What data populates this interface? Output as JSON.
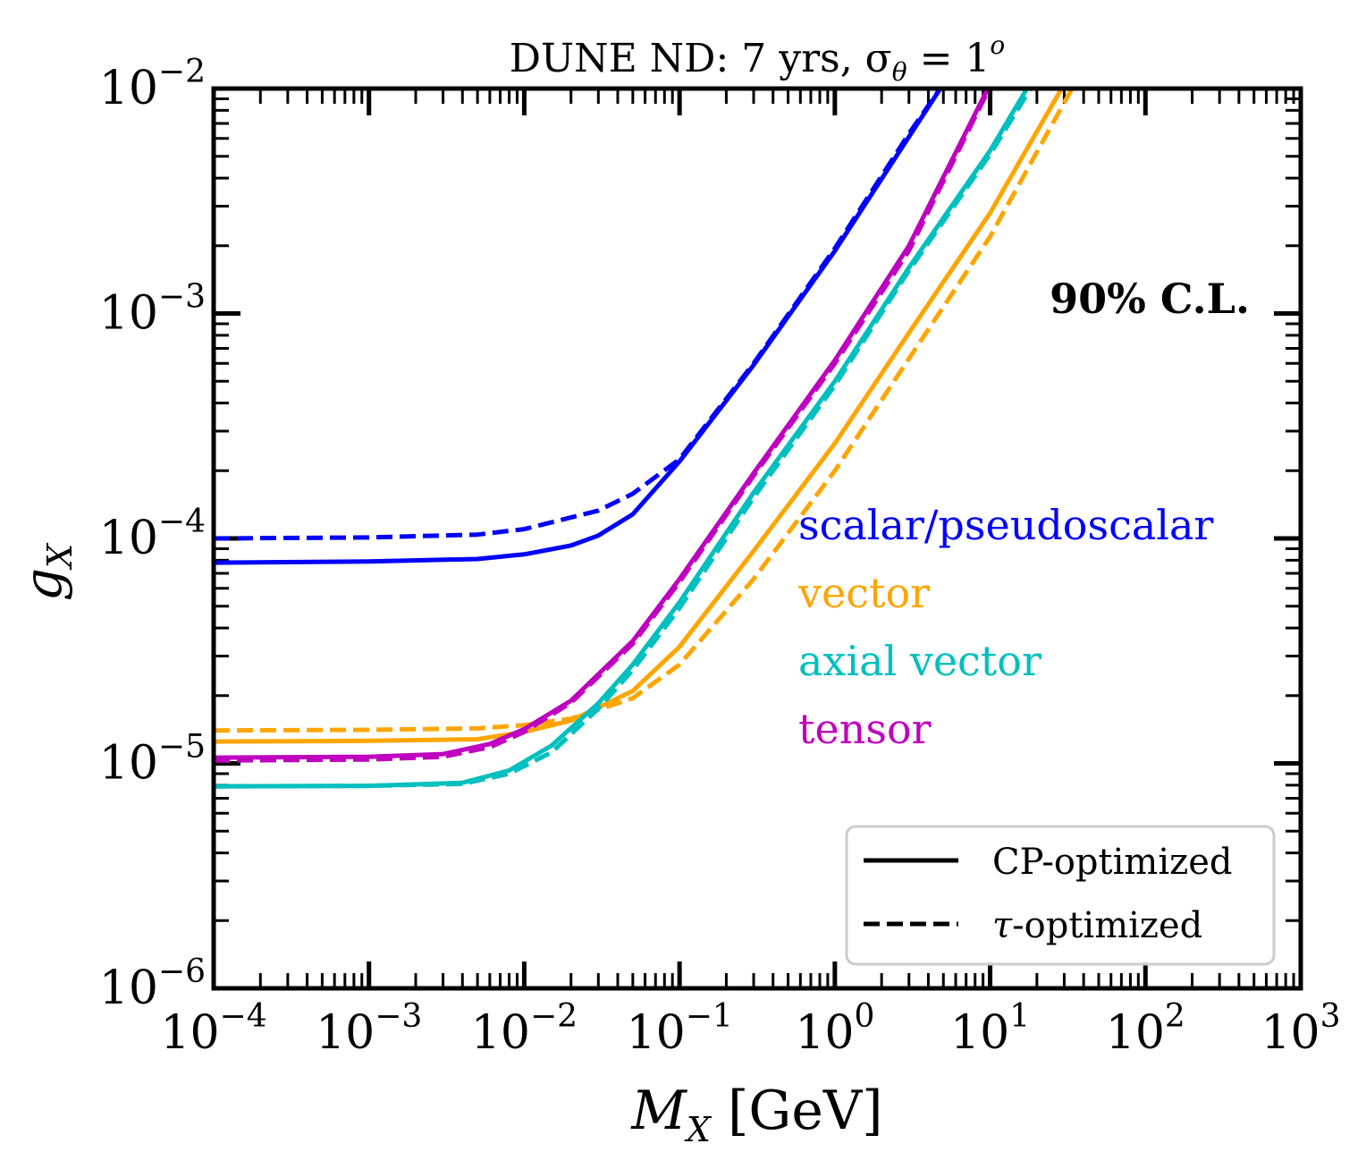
{
  "chart_data": {
    "type": "line",
    "title": "DUNE ND: 7 yrs, σ_θ = 1^o",
    "title_parts": {
      "main": "DUNE ND: 7 yrs, σ",
      "sub": "θ",
      "eq": " = 1",
      "sup": "o"
    },
    "xlabel": "M_X [GeV]",
    "xlabel_parts": {
      "main": "M",
      "sub": "X",
      "unit": " [GeV]"
    },
    "ylabel": "g_X",
    "ylabel_parts": {
      "main": "g",
      "sub": "X"
    },
    "xscale": "log",
    "yscale": "log",
    "xlim": [
      0.0001,
      1000
    ],
    "ylim": [
      1e-06,
      0.01
    ],
    "x_ticks": [
      {
        "base": "10",
        "exp": "−4"
      },
      {
        "base": "10",
        "exp": "−3"
      },
      {
        "base": "10",
        "exp": "−2"
      },
      {
        "base": "10",
        "exp": "−1"
      },
      {
        "base": "10",
        "exp": "0"
      },
      {
        "base": "10",
        "exp": "1"
      },
      {
        "base": "10",
        "exp": "2"
      },
      {
        "base": "10",
        "exp": "3"
      }
    ],
    "y_ticks": [
      {
        "base": "10",
        "exp": "−6"
      },
      {
        "base": "10",
        "exp": "−5"
      },
      {
        "base": "10",
        "exp": "−4"
      },
      {
        "base": "10",
        "exp": "−3"
      },
      {
        "base": "10",
        "exp": "−2"
      }
    ],
    "annotation": "90% C.L.",
    "series_labels": [
      {
        "text": "scalar/pseudoscalar",
        "color": "#0000ff"
      },
      {
        "text": "vector",
        "color": "#ffa500"
      },
      {
        "text": "axial vector",
        "color": "#00bfbf"
      },
      {
        "text": "tensor",
        "color": "#bf00bf"
      }
    ],
    "legend": {
      "position": "lower-right",
      "entries": [
        {
          "label": "CP-optimized",
          "style": "solid"
        },
        {
          "label": "-optimized",
          "prefix": "τ",
          "style": "dashed"
        }
      ]
    },
    "series": [
      {
        "name": "scalar/pseudoscalar",
        "variant": "CP-optimized",
        "color": "#0000ff",
        "style": "solid",
        "points": [
          [
            0.0001,
            7.8e-05
          ],
          [
            0.001,
            7.9e-05
          ],
          [
            0.005,
            8.1e-05
          ],
          [
            0.01,
            8.5e-05
          ],
          [
            0.02,
            9.3e-05
          ],
          [
            0.03,
            0.000103
          ],
          [
            0.05,
            0.000128
          ],
          [
            0.1,
            0.00022
          ],
          [
            0.3,
            0.00059
          ],
          [
            1,
            0.0019
          ],
          [
            3,
            0.0061
          ],
          [
            5,
            0.0105
          ]
        ]
      },
      {
        "name": "scalar/pseudoscalar",
        "variant": "τ-optimized",
        "color": "#0000ff",
        "style": "dashed",
        "points": [
          [
            0.0001,
            0.0001
          ],
          [
            0.001,
            0.000101
          ],
          [
            0.005,
            0.000104
          ],
          [
            0.01,
            0.00011
          ],
          [
            0.03,
            0.000133
          ],
          [
            0.05,
            0.000158
          ],
          [
            0.1,
            0.000225
          ],
          [
            0.3,
            0.0006
          ],
          [
            1,
            0.00195
          ],
          [
            3,
            0.0063
          ],
          [
            5,
            0.0105
          ]
        ]
      },
      {
        "name": "vector",
        "variant": "CP-optimized",
        "color": "#ffa500",
        "style": "solid",
        "points": [
          [
            0.0001,
            1.25e-05
          ],
          [
            0.001,
            1.26e-05
          ],
          [
            0.005,
            1.28e-05
          ],
          [
            0.01,
            1.38e-05
          ],
          [
            0.02,
            1.55e-05
          ],
          [
            0.05,
            2.1e-05
          ],
          [
            0.1,
            3.3e-05
          ],
          [
            0.3,
            8.8e-05
          ],
          [
            1,
            0.000265
          ],
          [
            3,
            0.00082
          ],
          [
            10,
            0.0028
          ],
          [
            30,
            0.0105
          ]
        ]
      },
      {
        "name": "vector",
        "variant": "τ-optimized",
        "color": "#ffa500",
        "style": "dashed",
        "points": [
          [
            0.0001,
            1.4e-05
          ],
          [
            0.001,
            1.41e-05
          ],
          [
            0.005,
            1.43e-05
          ],
          [
            0.01,
            1.48e-05
          ],
          [
            0.02,
            1.58e-05
          ],
          [
            0.05,
            1.95e-05
          ],
          [
            0.1,
            2.75e-05
          ],
          [
            0.3,
            6.6e-05
          ],
          [
            1,
            0.0002
          ],
          [
            3,
            0.00063
          ],
          [
            10,
            0.0022
          ],
          [
            35,
            0.0105
          ]
        ]
      },
      {
        "name": "axial vector",
        "variant": "CP-optimized",
        "color": "#00bfbf",
        "style": "solid",
        "points": [
          [
            0.0001,
            7.9e-06
          ],
          [
            0.001,
            7.95e-06
          ],
          [
            0.004,
            8.2e-06
          ],
          [
            0.008,
            9.3e-06
          ],
          [
            0.015,
            1.2e-05
          ],
          [
            0.03,
            1.85e-05
          ],
          [
            0.05,
            2.75e-05
          ],
          [
            0.1,
            5.2e-05
          ],
          [
            0.3,
            0.00016
          ],
          [
            1,
            0.0005
          ],
          [
            3,
            0.0016
          ],
          [
            10,
            0.0053
          ],
          [
            18,
            0.0105
          ]
        ]
      },
      {
        "name": "axial vector",
        "variant": "τ-optimized",
        "color": "#00bfbf",
        "style": "dashed",
        "points": [
          [
            0.0001,
            7.9e-06
          ],
          [
            0.001,
            7.95e-06
          ],
          [
            0.004,
            8.1e-06
          ],
          [
            0.008,
            9e-06
          ],
          [
            0.015,
            1.12e-05
          ],
          [
            0.03,
            1.75e-05
          ],
          [
            0.05,
            2.6e-05
          ],
          [
            0.1,
            4.9e-05
          ],
          [
            0.3,
            0.000152
          ],
          [
            1,
            0.00048
          ],
          [
            3,
            0.00155
          ],
          [
            10,
            0.0051
          ],
          [
            19,
            0.0105
          ]
        ]
      },
      {
        "name": "tensor",
        "variant": "CP-optimized",
        "color": "#bf00bf",
        "style": "solid",
        "points": [
          [
            0.0001,
            1.06e-05
          ],
          [
            0.001,
            1.07e-05
          ],
          [
            0.003,
            1.1e-05
          ],
          [
            0.006,
            1.22e-05
          ],
          [
            0.01,
            1.42e-05
          ],
          [
            0.02,
            1.9e-05
          ],
          [
            0.05,
            3.5e-05
          ],
          [
            0.1,
            6.6e-05
          ],
          [
            0.3,
            0.000195
          ],
          [
            1,
            0.00062
          ],
          [
            3,
            0.002
          ],
          [
            10,
            0.0105
          ]
        ]
      },
      {
        "name": "tensor",
        "variant": "τ-optimized",
        "color": "#bf00bf",
        "style": "dashed",
        "points": [
          [
            0.0001,
            1.03e-05
          ],
          [
            0.001,
            1.04e-05
          ],
          [
            0.003,
            1.07e-05
          ],
          [
            0.006,
            1.18e-05
          ],
          [
            0.01,
            1.38e-05
          ],
          [
            0.02,
            1.86e-05
          ],
          [
            0.05,
            3.4e-05
          ],
          [
            0.1,
            6.4e-05
          ],
          [
            0.3,
            0.00019
          ],
          [
            1,
            0.0006
          ],
          [
            3,
            0.0019
          ],
          [
            10,
            0.0102
          ]
        ]
      }
    ]
  }
}
